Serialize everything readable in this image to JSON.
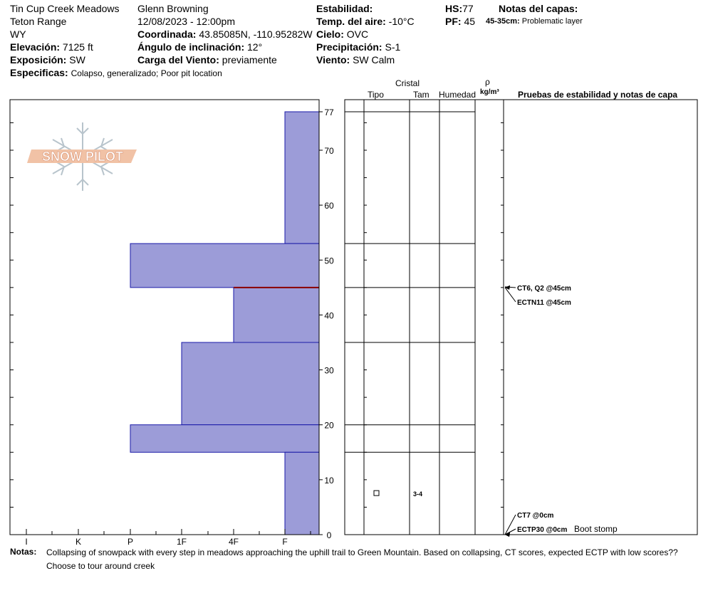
{
  "header": {
    "location": "Tin Cup Creek Meadows",
    "range": "Teton Range",
    "state": "WY",
    "elevation_label": "Elevación:",
    "elevation_value": "7125 ft",
    "aspect_label": "Exposición:",
    "aspect_value": "SW",
    "specifics_label": "Especificas:",
    "specifics_value": "Colapso, generalizado; Poor pit location",
    "observer": "Glenn Browning",
    "datetime": "12/08/2023 - 12:00pm",
    "coord_label": "Coordinada:",
    "coord_value": "43.85085N, -110.95282W",
    "slope_label": "Ángulo de inclinación:",
    "slope_value": "12°",
    "wind_load_label": "Carga del Viento:",
    "wind_load_value": "previamente",
    "stability_label": "Estabilidad:",
    "air_temp_label": "Temp. del aire:",
    "air_temp_value": "-10°C",
    "sky_label": "Cielo:",
    "sky_value": "OVC",
    "precip_label": "Precipitación:",
    "precip_value": "S-1",
    "wind_label": "Viento:",
    "wind_value": "SW Calm",
    "hs_label": "HS:",
    "hs_value": "77",
    "pf_label": "PF:",
    "pf_value": "45",
    "layer_notes_title": "Notas del capas:",
    "layer_note_range": "45-35cm:",
    "layer_note_text": "Problematic layer"
  },
  "logo": {
    "text": "SNOW PILOT"
  },
  "columns": {
    "crystal": "Cristal",
    "type": "Tipo",
    "size": "Tam",
    "moisture": "Humedad",
    "rho": "ρ",
    "density_unit": "kg/m³",
    "tests": "Pruebas de estabilidad y notas de capa"
  },
  "chart_data": {
    "type": "bar",
    "orientation": "horizontal",
    "hardness_axis": [
      "I",
      "K",
      "P",
      "1F",
      "4F",
      "F"
    ],
    "hardness_axis_order": "right-to-left, F at right",
    "depth_ticks": [
      0,
      10,
      20,
      30,
      40,
      50,
      60,
      70,
      77
    ],
    "ylim": [
      0,
      77
    ],
    "layers": [
      {
        "bottom": 53,
        "top": 77,
        "hardness": "F"
      },
      {
        "bottom": 45,
        "top": 53,
        "hardness": "P"
      },
      {
        "bottom": 35,
        "top": 45,
        "hardness": "4F"
      },
      {
        "bottom": 20,
        "top": 35,
        "hardness": "1F"
      },
      {
        "bottom": 15,
        "top": 20,
        "hardness": "P"
      },
      {
        "bottom": 0,
        "top": 15,
        "hardness": "F"
      }
    ],
    "weak_layer_depth": 45,
    "layer_boundaries": [
      77,
      53,
      45,
      35,
      20,
      15
    ],
    "crystal_rows": [
      {
        "depth": 7.5,
        "type": "square",
        "size": "3-4"
      }
    ],
    "colors": {
      "bar_fill": "#9c9cd8",
      "bar_stroke": "#1a1aa8",
      "weak_layer": "#8b0000"
    }
  },
  "tests": [
    {
      "text": "CT6, Q2 @45cm",
      "depth": 45
    },
    {
      "text": "ECTN11 @45cm",
      "depth": 45
    },
    {
      "text": "CT7 @0cm",
      "depth": 0
    },
    {
      "text": "ECTP30 @0cm",
      "depth": 0
    }
  ],
  "boot_stomp": "Boot stomp",
  "notes": {
    "label": "Notas:",
    "line1": "Collapsing of snowpack with every step in meadows approaching the uphill trail to Green Mountain. Based on collapsing, CT scores, expected ECTP with low scores??",
    "line2": "Choose to tour around creek"
  }
}
